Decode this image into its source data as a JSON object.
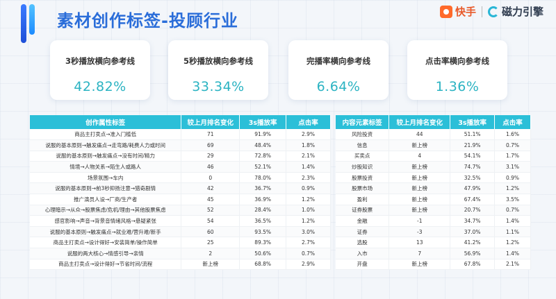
{
  "header": {
    "title": "素材创作标签-投顾行业",
    "brand_kuaishou": "快手",
    "brand_cili": "磁力引擎"
  },
  "cards": [
    {
      "label": "3秒播放横向参考线",
      "value": "42.82%"
    },
    {
      "label": "5秒播放横向参考线",
      "value": "33.34%"
    },
    {
      "label": "完播率横向参考线",
      "value": "6.64%"
    },
    {
      "label": "点击率横向参考线",
      "value": "1.36%"
    }
  ],
  "table_left": {
    "headers": [
      "创作属性标签",
      "较上月排名变化",
      "3s播放率",
      "点击率"
    ],
    "rows": [
      [
        "商品主打卖点→准入门槛低",
        "71",
        "91.9%",
        "2.9%"
      ],
      [
        "说服的基本原则→触发痛点→走弯路/耗费人力或时间",
        "69",
        "48.4%",
        "1.8%"
      ],
      [
        "说服的基本原则→触发痛点→没有时间/精力",
        "29",
        "72.8%",
        "2.1%"
      ],
      [
        "情境→人物关系→陌生人或路人",
        "46",
        "52.1%",
        "1.4%"
      ],
      [
        "场景氛围→车内",
        "0",
        "78.0%",
        "2.3%"
      ],
      [
        "说服的基本原则→前3秒抑扬注意→猎奇剧情",
        "42",
        "36.7%",
        "0.9%"
      ],
      [
        "推广演员人设→厂商/生产者",
        "45",
        "36.9%",
        "1.2%"
      ],
      [
        "心理暗示→从众→股票焦虑/危机/理由→其他股票焦虑",
        "52",
        "28.4%",
        "1.0%"
      ],
      [
        "感官影响→声音→背景音情绪风格→悬疑紧张",
        "54",
        "36.5%",
        "1.2%"
      ],
      [
        "说服的基本原则→触发痛点→就业难/营升难/新手",
        "60",
        "93.5%",
        "3.0%"
      ],
      [
        "商品主打卖点→设计得好→安装简单/操作简单",
        "25",
        "89.3%",
        "2.7%"
      ],
      [
        "说服的两大核心→情感引导→亲情",
        "2",
        "50.6%",
        "0.7%"
      ],
      [
        "商品主打卖点→设计得好→节省时间/流程",
        "新上榜",
        "68.8%",
        "2.9%"
      ]
    ]
  },
  "table_right": {
    "headers": [
      "内容元素标签",
      "较上月排名变化",
      "3s播放率",
      "点击率"
    ],
    "rows": [
      [
        "风险投资",
        "44",
        "51.1%",
        "1.6%"
      ],
      [
        "信息",
        "新上榜",
        "21.9%",
        "0.7%"
      ],
      [
        "买卖点",
        "4",
        "54.1%",
        "1.7%"
      ],
      [
        "炒股知识",
        "新上榜",
        "74.7%",
        "3.1%"
      ],
      [
        "股票投资",
        "新上榜",
        "32.5%",
        "0.9%"
      ],
      [
        "股票市场",
        "新上榜",
        "47.9%",
        "1.2%"
      ],
      [
        "盈利",
        "新上榜",
        "67.4%",
        "3.5%"
      ],
      [
        "证券股票",
        "新上榜",
        "20.7%",
        "0.7%"
      ],
      [
        "金融",
        "-1",
        "34.7%",
        "1.4%"
      ],
      [
        "证券",
        "-3",
        "37.0%",
        "1.1%"
      ],
      [
        "选股",
        "13",
        "41.2%",
        "1.2%"
      ],
      [
        "入市",
        "7",
        "56.9%",
        "1.4%"
      ],
      [
        "开盘",
        "新上榜",
        "67.8%",
        "2.1%"
      ]
    ]
  }
}
